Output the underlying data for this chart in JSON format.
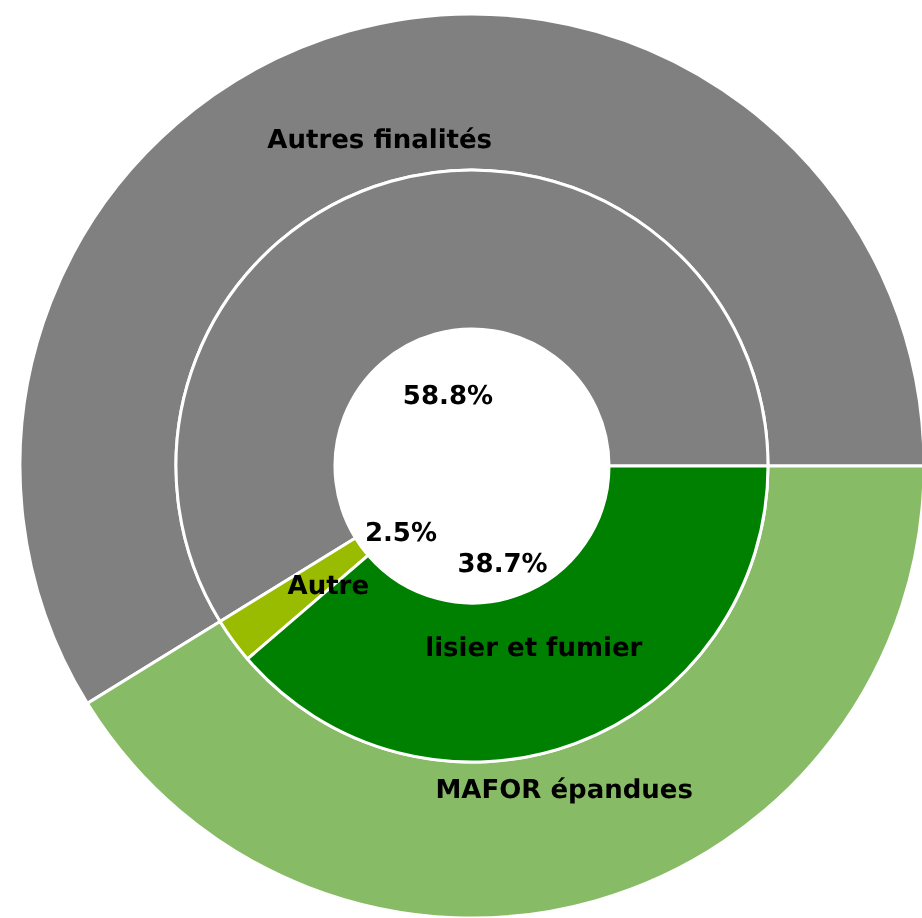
{
  "chart_data": [
    {
      "type": "donut",
      "categories": [
        "Autres finalités",
        "MAFOR épandues"
      ],
      "values": [
        58.8,
        41.2
      ],
      "colors": [
        "#808080",
        "#88bb66"
      ]
    },
    {
      "type": "donut",
      "categories": [
        null,
        "Autre",
        "lisier et fumier"
      ],
      "values": [
        58.8,
        2.5,
        38.7
      ],
      "colors": [
        "#808080",
        "#99bb00",
        "#008000"
      ],
      "value_labels": [
        "58.8%",
        "2.5%",
        "38.7%"
      ]
    }
  ]
}
